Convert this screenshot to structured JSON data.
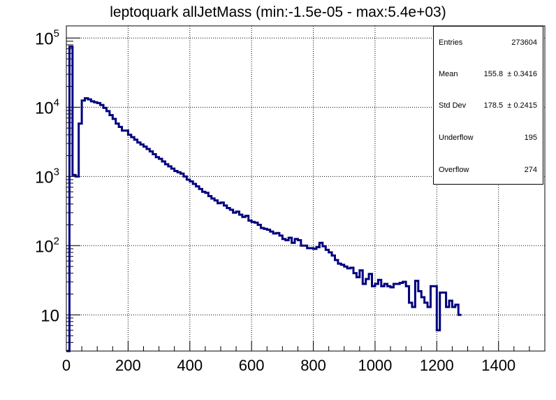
{
  "chart_data": {
    "type": "histogram",
    "title": "leptoquark allJetMass (min:-1.5e-05 - max:5.4e+03)",
    "xlabel": "",
    "ylabel": "",
    "xlim": [
      0,
      1550
    ],
    "ylim": [
      3,
      150000
    ],
    "y_scale": "log",
    "grid": true,
    "bin_width": 10,
    "line_color": "#000080",
    "x_ticks": [
      {
        "value": 0,
        "label": "0"
      },
      {
        "value": 200,
        "label": "200"
      },
      {
        "value": 400,
        "label": "400"
      },
      {
        "value": 600,
        "label": "600"
      },
      {
        "value": 800,
        "label": "800"
      },
      {
        "value": 1000,
        "label": "1000"
      },
      {
        "value": 1200,
        "label": "1200"
      },
      {
        "value": 1400,
        "label": "1400"
      }
    ],
    "y_ticks": [
      {
        "value": 10,
        "base": "10",
        "exp": ""
      },
      {
        "value": 100,
        "base": "10",
        "exp": "2"
      },
      {
        "value": 1000,
        "base": "10",
        "exp": "3"
      },
      {
        "value": 10000,
        "base": "10",
        "exp": "4"
      },
      {
        "value": 100000,
        "base": "10",
        "exp": "5"
      }
    ],
    "values": [
      0,
      75000,
      1050,
      1000,
      5800,
      12500,
      13500,
      13000,
      12200,
      11800,
      11500,
      10800,
      9800,
      8800,
      7700,
      6800,
      5800,
      5200,
      4600,
      4600,
      4000,
      3700,
      3400,
      3100,
      2900,
      2700,
      2500,
      2300,
      2100,
      1900,
      1800,
      1650,
      1500,
      1400,
      1300,
      1200,
      1150,
      1100,
      1000,
      900,
      850,
      780,
      720,
      660,
      600,
      580,
      520,
      480,
      450,
      410,
      420,
      380,
      350,
      330,
      300,
      310,
      280,
      260,
      270,
      230,
      220,
      215,
      200,
      180,
      175,
      170,
      160,
      150,
      152,
      140,
      125,
      120,
      130,
      110,
      125,
      120,
      100,
      100,
      92,
      92,
      90,
      95,
      110,
      98,
      87,
      80,
      72,
      62,
      55,
      53,
      50,
      47,
      48,
      40,
      35,
      44,
      28,
      33,
      39,
      26,
      28,
      32,
      26,
      28,
      26,
      25,
      28,
      28,
      29,
      30,
      26,
      15,
      13,
      31,
      22,
      18,
      15,
      13,
      26,
      26,
      6,
      21,
      21,
      13,
      16,
      13,
      14,
      10
    ],
    "stats": [
      {
        "label": "Entries",
        "value": "273604"
      },
      {
        "label": "Mean",
        "value": "155.8  ± 0.3416"
      },
      {
        "label": "Std Dev",
        "value": "178.5  ± 0.2415"
      },
      {
        "label": "Underflow",
        "value": "195"
      },
      {
        "label": "Overflow",
        "value": "274"
      }
    ]
  }
}
